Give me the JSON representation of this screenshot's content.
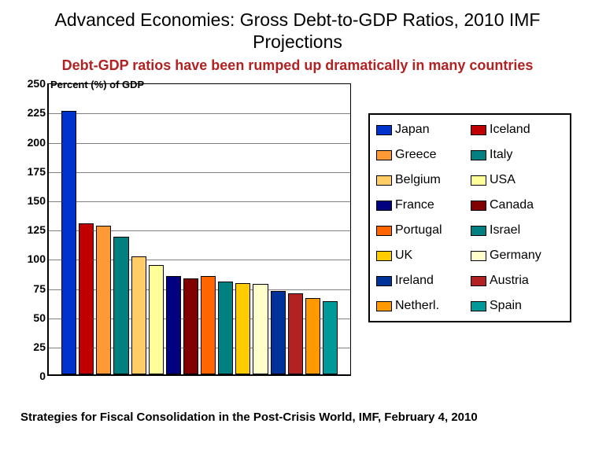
{
  "title": "Advanced Economies: Gross Debt-to-GDP Ratios, 2010 IMF Projections",
  "subtitle": "Debt-GDP ratios have been rumped up dramatically in many countries",
  "ylabel_note": "Percent (%) of GDP",
  "source": "Strategies for Fiscal Consolidation in the Post-Crisis World, IMF, February 4, 2010",
  "chart": {
    "type": "bar",
    "ylim": [
      0,
      250
    ],
    "ytick_step": 25,
    "yticks": [
      0,
      25,
      50,
      75,
      100,
      125,
      150,
      175,
      200,
      225,
      250
    ],
    "grid_color": "#808080",
    "background_color": "#ffffff",
    "border_color": "#000000",
    "bar_border_color": "#000000",
    "series": [
      {
        "label": "Japan",
        "value": 227,
        "color": "#0033cc"
      },
      {
        "label": "Iceland",
        "value": 130,
        "color": "#c00000"
      },
      {
        "label": "Greece",
        "value": 128,
        "color": "#ff9933"
      },
      {
        "label": "Italy",
        "value": 119,
        "color": "#008080"
      },
      {
        "label": "Belgium",
        "value": 102,
        "color": "#ffcc66"
      },
      {
        "label": "USA",
        "value": 94,
        "color": "#ffff99"
      },
      {
        "label": "France",
        "value": 85,
        "color": "#000080"
      },
      {
        "label": "Canada",
        "value": 83,
        "color": "#800000"
      },
      {
        "label": "Portugal",
        "value": 85,
        "color": "#ff6600"
      },
      {
        "label": "Israel",
        "value": 80,
        "color": "#008080"
      },
      {
        "label": "UK",
        "value": 79,
        "color": "#ffcc00"
      },
      {
        "label": "Germany",
        "value": 78,
        "color": "#ffffcc"
      },
      {
        "label": "Ireland",
        "value": 72,
        "color": "#003399"
      },
      {
        "label": "Austria",
        "value": 70,
        "color": "#b22222"
      },
      {
        "label": "Netherl.",
        "value": 66,
        "color": "#ff9900"
      },
      {
        "label": "Spain",
        "value": 63,
        "color": "#009999"
      }
    ],
    "title_fontsize": 23,
    "subtitle_fontsize": 18,
    "subtitle_color": "#b22222",
    "label_fontsize": 13,
    "tick_fontsize": 14,
    "legend_fontsize": 16,
    "source_fontsize": 15
  }
}
